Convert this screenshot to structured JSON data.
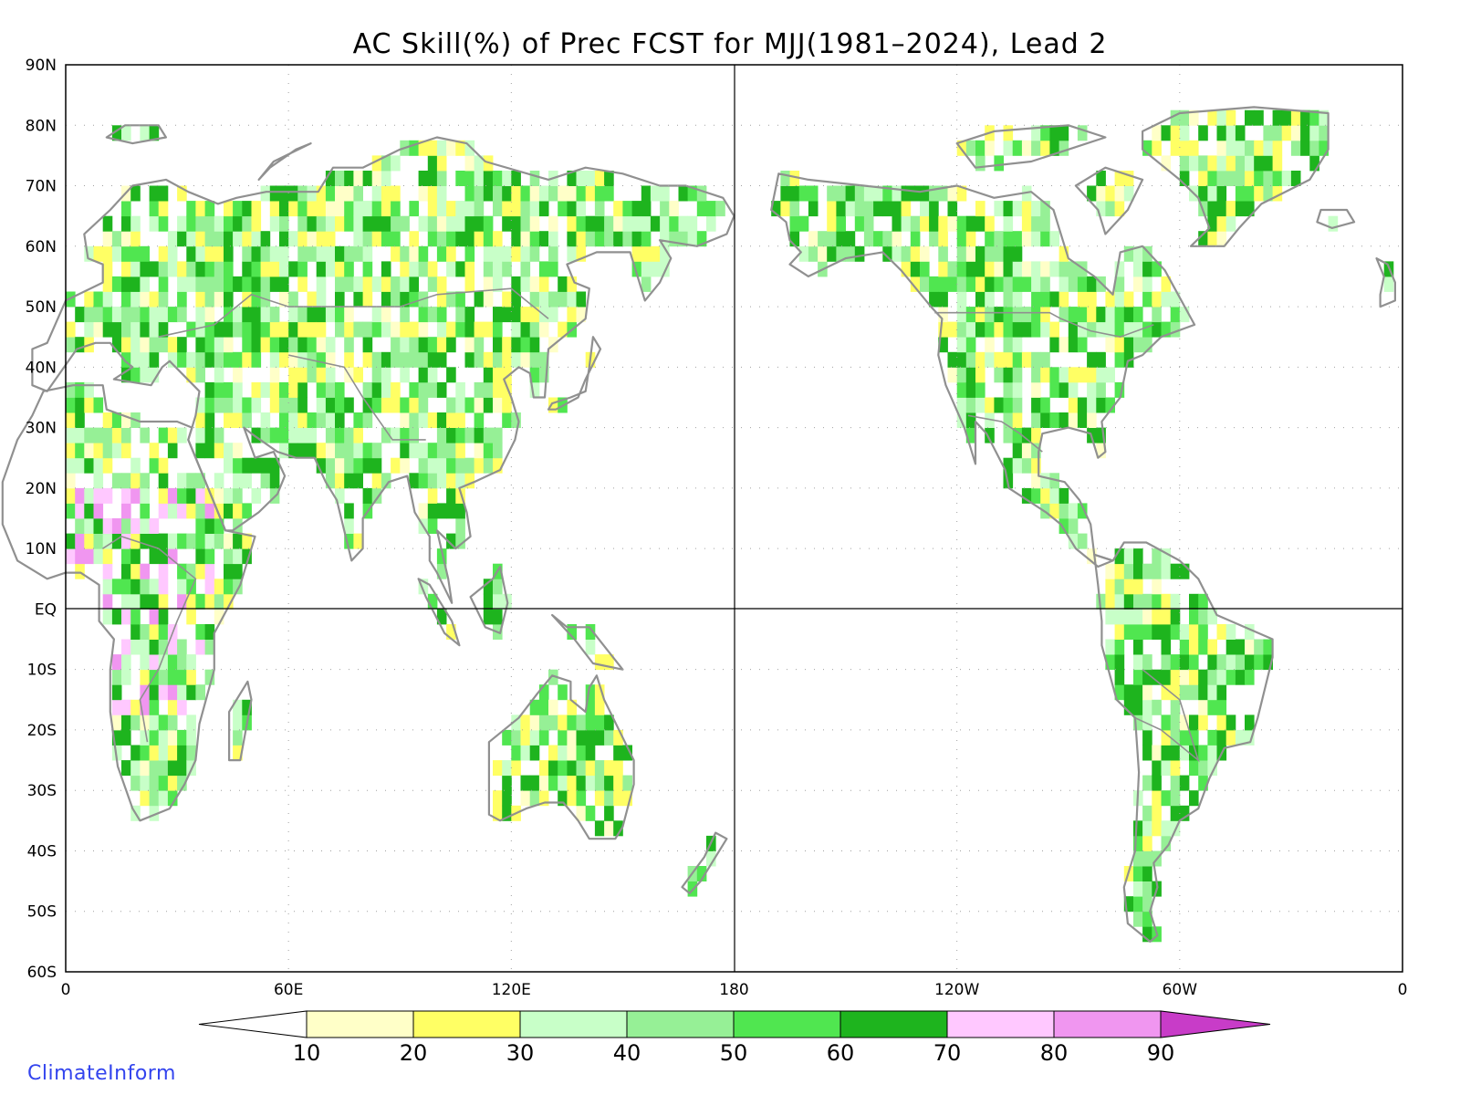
{
  "title": "AC Skill(%) of Prec FCST for MJJ(1981–2024), Lead 2",
  "lat_labels": [
    "90N",
    "80N",
    "70N",
    "60N",
    "50N",
    "40N",
    "30N",
    "20N",
    "10N",
    "EQ",
    "10S",
    "20S",
    "30S",
    "40S",
    "50S",
    "60S"
  ],
  "lon_labels": [
    "0",
    "60E",
    "120E",
    "180",
    "120W",
    "60W",
    "0"
  ],
  "legend": {
    "ticks": [
      "10",
      "20",
      "30",
      "40",
      "50",
      "60",
      "70",
      "80",
      "90"
    ],
    "colors": {
      "below_10": "#ffffff",
      "10_20": "#ffffc8",
      "20_30": "#ffff64",
      "30_40": "#c8ffc8",
      "40_50": "#96f096",
      "50_60": "#50e650",
      "60_70": "#1eb41e",
      "70_80": "#ffc8ff",
      "80_90": "#f096f0",
      "above_90": "#c83cc8"
    }
  },
  "colors": {
    "coastline": "#909090",
    "border": "#909090",
    "frame": "#000000",
    "grid": "#a0a0a0",
    "brand": "#3344ee"
  },
  "map": {
    "projection": "cylindrical equidistant",
    "lon_range": [
      0,
      360
    ],
    "lat_range": [
      -60,
      90
    ],
    "grid": "dotted every 30 degrees",
    "reference_lines": [
      "equator",
      "180 meridian"
    ]
  },
  "brand": "ClimateInform"
}
